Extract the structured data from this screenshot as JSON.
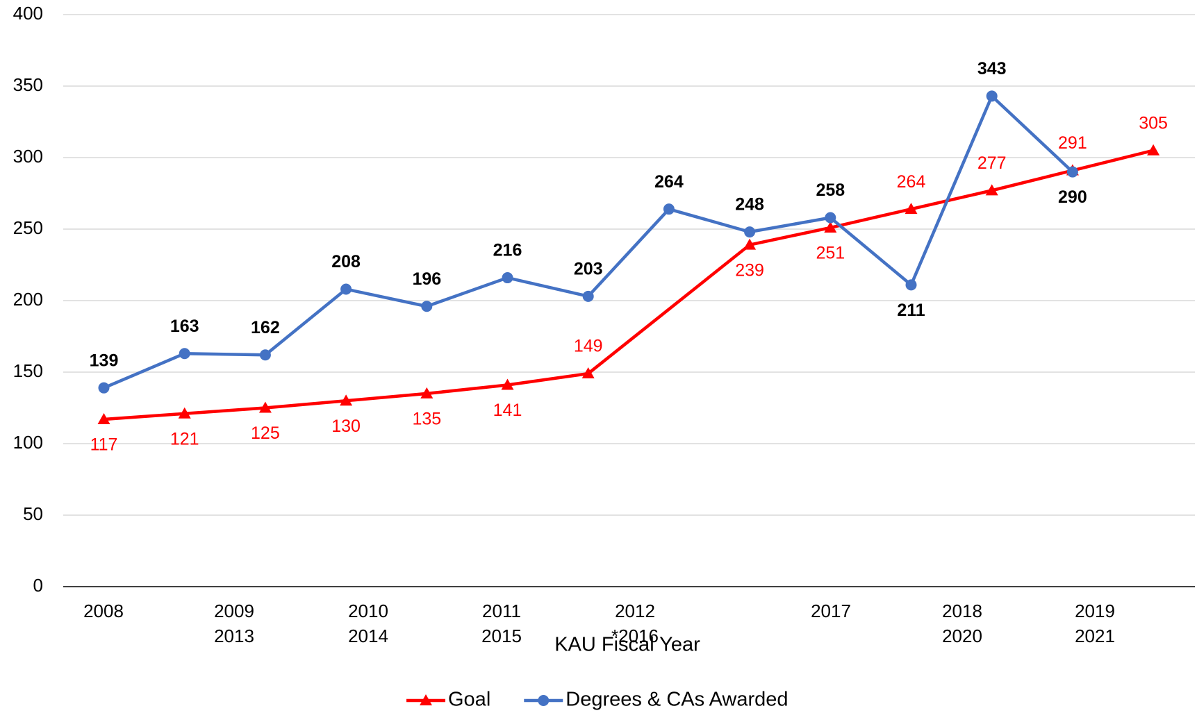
{
  "chart_data": {
    "type": "line",
    "x_label": "KAU Fiscal Year",
    "categories": [
      "2008",
      "2009",
      "2010",
      "2011",
      "2012",
      "2013",
      "2014",
      "2015",
      "*2016",
      "2017",
      "2018",
      "2019",
      "2020",
      "2021"
    ],
    "series": [
      {
        "name": "Goal",
        "color": "#ff0000",
        "marker": "triangle",
        "values": [
          117,
          121,
          125,
          130,
          135,
          141,
          149,
          null,
          239,
          251,
          264,
          277,
          291,
          305
        ]
      },
      {
        "name": "Degrees & CAs Awarded",
        "color": "#4472c4",
        "marker": "circle",
        "values": [
          139,
          163,
          162,
          208,
          196,
          216,
          203,
          264,
          248,
          258,
          211,
          343,
          290,
          null
        ]
      }
    ],
    "ylim": [
      0,
      400
    ],
    "yticks": [
      0,
      50,
      100,
      150,
      200,
      250,
      300,
      350,
      400
    ],
    "grid": true,
    "legend": "bottom"
  }
}
